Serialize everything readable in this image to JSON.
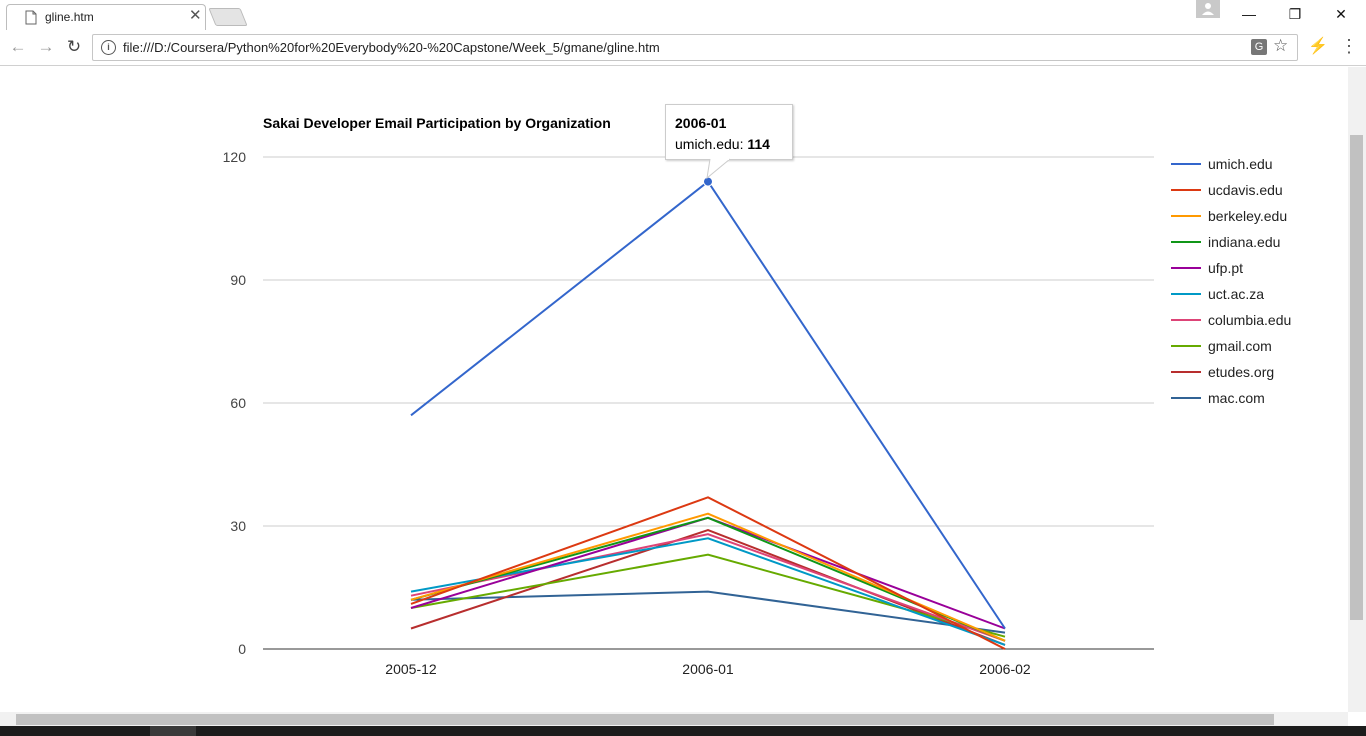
{
  "browser": {
    "tab_title": "gline.htm",
    "url": "file:///D:/Coursera/Python%20for%20Everybody%20-%20Capstone/Week_5/gmane/gline.htm",
    "icons": [
      "file-icon",
      "close-icon",
      "back-icon",
      "forward-icon",
      "reload-icon",
      "info-icon",
      "translate-icon",
      "star-icon",
      "extension-icon",
      "menu-icon",
      "minimize-icon",
      "restore-icon",
      "window-close-icon",
      "profile-icon"
    ]
  },
  "tooltip": {
    "title": "2006-01",
    "label": "umich.edu:",
    "value": "114"
  },
  "chart_data": {
    "type": "line",
    "title": "Sakai Developer Email Participation by Organization",
    "categories": [
      "2005-12",
      "2006-01",
      "2006-02"
    ],
    "ylim": [
      0,
      120
    ],
    "yticks": [
      "0",
      "30",
      "60",
      "90",
      "120"
    ],
    "grid": true,
    "legend_position": "right",
    "series": [
      {
        "name": "umich.edu",
        "color": "#3366cc",
        "values": [
          57,
          114,
          5
        ]
      },
      {
        "name": "ucdavis.edu",
        "color": "#dc3912",
        "values": [
          11,
          37,
          0
        ]
      },
      {
        "name": "berkeley.edu",
        "color": "#ff9900",
        "values": [
          12,
          33,
          2
        ]
      },
      {
        "name": "indiana.edu",
        "color": "#109618",
        "values": [
          12,
          32,
          2
        ]
      },
      {
        "name": "ufp.pt",
        "color": "#990099",
        "values": [
          10,
          32,
          5
        ]
      },
      {
        "name": "uct.ac.za",
        "color": "#0099c6",
        "values": [
          14,
          27,
          1
        ]
      },
      {
        "name": "columbia.edu",
        "color": "#dd4477",
        "values": [
          13,
          28,
          2
        ]
      },
      {
        "name": "gmail.com",
        "color": "#66aa00",
        "values": [
          10,
          23,
          3
        ]
      },
      {
        "name": "etudes.org",
        "color": "#b82e2e",
        "values": [
          5,
          29,
          1
        ]
      },
      {
        "name": "mac.com",
        "color": "#316395",
        "values": [
          12,
          14,
          4
        ]
      }
    ],
    "highlight": {
      "series": "umich.edu",
      "category": "2006-01"
    }
  }
}
